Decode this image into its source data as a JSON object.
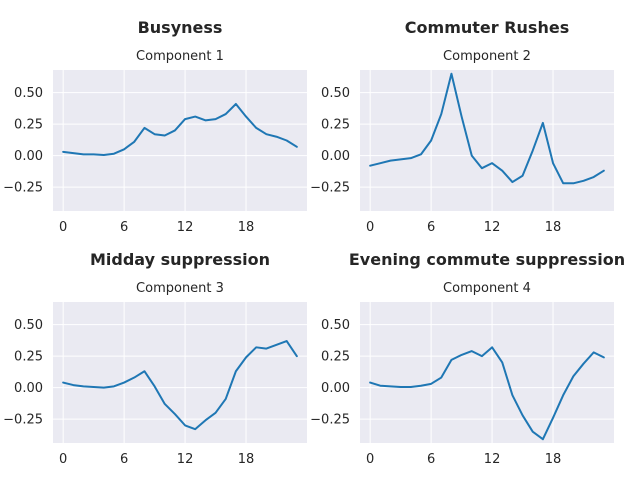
{
  "chart_data": [
    {
      "type": "line",
      "title": "Busyness",
      "subtitle": "Component 1",
      "xlabel": "",
      "ylabel": "",
      "xticks": [
        0,
        6,
        12,
        18
      ],
      "yticks": [
        0.5,
        0.25,
        0.0,
        -0.25
      ],
      "ytick_labels": [
        "0.50",
        "0.25",
        "0.00",
        "−0.25"
      ],
      "xlim": [
        -1,
        24
      ],
      "ylim": [
        -0.44,
        0.68
      ],
      "grid": true,
      "series": [
        {
          "color": "#1f77b4",
          "x": [
            0,
            1,
            2,
            3,
            4,
            5,
            6,
            7,
            8,
            9,
            10,
            11,
            12,
            13,
            14,
            15,
            16,
            17,
            18,
            19,
            20,
            21,
            22,
            23
          ],
          "values": [
            0.03,
            0.02,
            0.01,
            0.01,
            0.005,
            0.015,
            0.05,
            0.11,
            0.22,
            0.17,
            0.16,
            0.2,
            0.29,
            0.31,
            0.28,
            0.29,
            0.33,
            0.41,
            0.31,
            0.22,
            0.17,
            0.15,
            0.12,
            0.07
          ]
        }
      ]
    },
    {
      "type": "line",
      "title": "Commuter Rushes",
      "subtitle": "Component 2",
      "xlabel": "",
      "ylabel": "",
      "xticks": [
        0,
        6,
        12,
        18
      ],
      "yticks": [
        0.5,
        0.25,
        0.0,
        -0.25
      ],
      "ytick_labels": [
        "0.50",
        "0.25",
        "0.00",
        "−0.25"
      ],
      "xlim": [
        -1,
        24
      ],
      "ylim": [
        -0.44,
        0.68
      ],
      "grid": true,
      "series": [
        {
          "color": "#1f77b4",
          "x": [
            0,
            1,
            2,
            3,
            4,
            5,
            6,
            7,
            8,
            9,
            10,
            11,
            12,
            13,
            14,
            15,
            16,
            17,
            18,
            19,
            20,
            21,
            22,
            23
          ],
          "values": [
            -0.08,
            -0.06,
            -0.04,
            -0.03,
            -0.02,
            0.01,
            0.12,
            0.33,
            0.65,
            0.31,
            0.0,
            -0.1,
            -0.06,
            -0.12,
            -0.21,
            -0.16,
            0.04,
            0.26,
            -0.06,
            -0.22,
            -0.22,
            -0.2,
            -0.17,
            -0.12
          ]
        }
      ]
    },
    {
      "type": "line",
      "title": "Midday suppression",
      "subtitle": "Component 3",
      "xlabel": "",
      "ylabel": "",
      "xticks": [
        0,
        6,
        12,
        18
      ],
      "yticks": [
        0.5,
        0.25,
        0.0,
        -0.25
      ],
      "ytick_labels": [
        "0.50",
        "0.25",
        "0.00",
        "−0.25"
      ],
      "xlim": [
        -1,
        24
      ],
      "ylim": [
        -0.44,
        0.68
      ],
      "grid": true,
      "series": [
        {
          "color": "#1f77b4",
          "x": [
            0,
            1,
            2,
            3,
            4,
            5,
            6,
            7,
            8,
            9,
            10,
            11,
            12,
            13,
            14,
            15,
            16,
            17,
            18,
            19,
            20,
            21,
            22,
            23
          ],
          "values": [
            0.04,
            0.02,
            0.01,
            0.005,
            0.0,
            0.01,
            0.04,
            0.08,
            0.13,
            0.01,
            -0.13,
            -0.21,
            -0.3,
            -0.33,
            -0.26,
            -0.2,
            -0.09,
            0.13,
            0.24,
            0.32,
            0.31,
            0.34,
            0.37,
            0.25
          ]
        }
      ]
    },
    {
      "type": "line",
      "title": "Evening commute suppression",
      "subtitle": "Component 4",
      "xlabel": "",
      "ylabel": "",
      "xticks": [
        0,
        6,
        12,
        18
      ],
      "yticks": [
        0.5,
        0.25,
        0.0,
        -0.25
      ],
      "ytick_labels": [
        "0.50",
        "0.25",
        "0.00",
        "−0.25"
      ],
      "xlim": [
        -1,
        24
      ],
      "ylim": [
        -0.44,
        0.68
      ],
      "grid": true,
      "series": [
        {
          "color": "#1f77b4",
          "x": [
            0,
            1,
            2,
            3,
            4,
            5,
            6,
            7,
            8,
            9,
            10,
            11,
            12,
            13,
            14,
            15,
            16,
            17,
            18,
            19,
            20,
            21,
            22,
            23
          ],
          "values": [
            0.04,
            0.015,
            0.01,
            0.005,
            0.005,
            0.015,
            0.03,
            0.08,
            0.22,
            0.26,
            0.29,
            0.25,
            0.32,
            0.2,
            -0.06,
            -0.22,
            -0.35,
            -0.41,
            -0.24,
            -0.06,
            0.09,
            0.19,
            0.28,
            0.24
          ]
        }
      ]
    }
  ]
}
